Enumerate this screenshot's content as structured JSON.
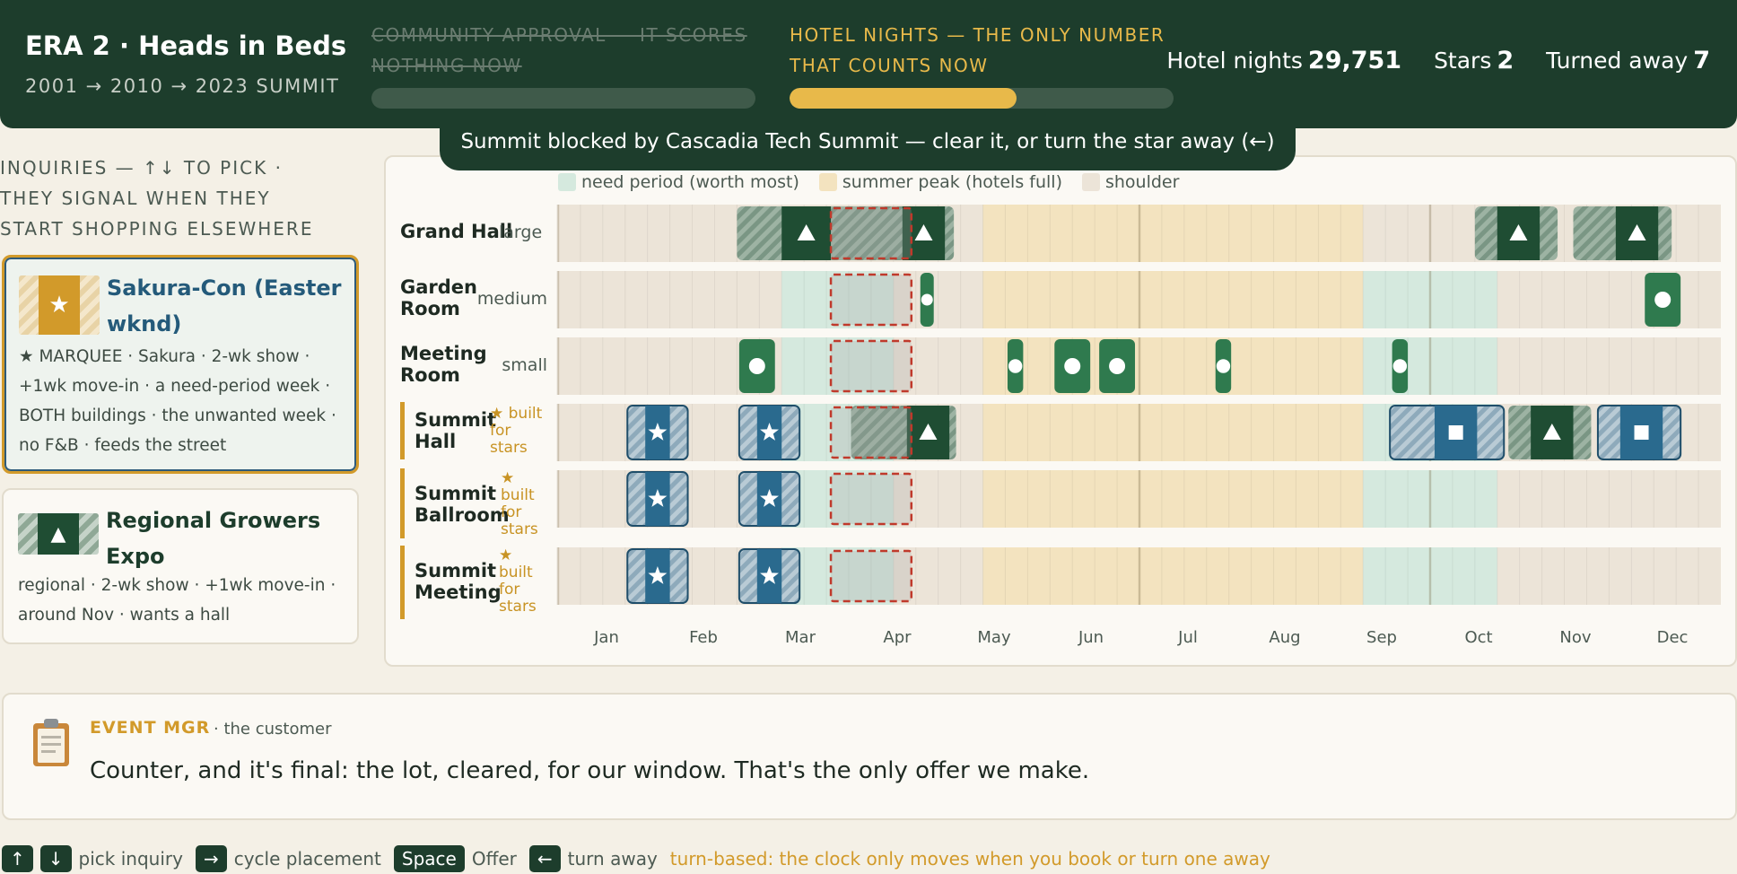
{
  "header": {
    "title": "ERA 2 · Heads in Beds",
    "subtitle": "2001 → 2010 → 2023 SUMMIT",
    "old_objective": "COMMUNITY APPROVAL — IT SCORES NOTHING NOW",
    "current_objective": "HOTEL NIGHTS — THE ONLY NUMBER THAT COUNTS NOW",
    "old_progress": 0,
    "current_progress": 0.59,
    "stats": {
      "hotel_nights_label": "Hotel nights",
      "hotel_nights": "29,751",
      "stars_label": "Stars",
      "stars": "2",
      "turned_away_label": "Turned away",
      "turned_away": "7"
    }
  },
  "toast": "Summit blocked by Cascadia Tech Summit — clear it, or turn the star away (←)",
  "inquiries": {
    "heading": "INQUIRIES — ↑↓ TO PICK · THEY SIGNAL WHEN THEY START SHOPPING ELSEWHERE",
    "items": [
      {
        "title": "Sakura-Con (Easter wknd)",
        "icon": "star-icon",
        "description": "★ MARQUEE · Sakura · 2-wk show · +1wk move-in · a need-period week · BOTH buildings · the unwanted week · no F&B · feeds the street",
        "selected": true
      },
      {
        "title": "Regional Growers Expo",
        "icon": "triangle-icon",
        "description": "regional · 2-wk show · +1wk move-in · around Nov · wants a hall",
        "selected": false
      }
    ]
  },
  "legend": [
    {
      "label": "need period (worth most)",
      "color": "#d5e9de"
    },
    {
      "label": "summer peak (hotels full)",
      "color": "#f3e3bf"
    },
    {
      "label": "shoulder",
      "color": "#ece4d8"
    }
  ],
  "rooms": [
    {
      "name": "Grand Hall",
      "size": "large",
      "summit": false
    },
    {
      "name": "Garden Room",
      "size": "medium",
      "summit": false
    },
    {
      "name": "Meeting Room",
      "size": "small",
      "summit": false
    },
    {
      "name": "Summit Hall",
      "size": "★ built for stars",
      "summit": true
    },
    {
      "name": "Summit Ballroom",
      "size": "★ built for stars",
      "summit": true
    },
    {
      "name": "Summit Meeting",
      "size": "★ built for stars",
      "summit": true
    }
  ],
  "months": [
    "Jan",
    "Feb",
    "Mar",
    "Apr",
    "May",
    "Jun",
    "Jul",
    "Aug",
    "Sep",
    "Oct",
    "Nov",
    "Dec"
  ],
  "colors": {
    "need": "#d5e9de",
    "peak": "#f3e3bf",
    "shoulder": "#ece4d8",
    "green": "#1f4d33",
    "blue": "#2a6a8e",
    "block_green": "#2f7a4e",
    "accent": "#d29a2a",
    "conflict": "#c0392b"
  },
  "dialog": {
    "speaker": "EVENT MGR",
    "role": "· the customer",
    "text": "Counter, and it's final: the lot, cleared, for our window. That's the only offer we make."
  },
  "footer": {
    "keys": [
      {
        "key": "↑",
        "label": ""
      },
      {
        "key": "↓",
        "label": "pick inquiry"
      },
      {
        "key": "→",
        "label": "cycle placement"
      },
      {
        "key": "Space",
        "label": "Offer"
      },
      {
        "key": "←",
        "label": "turn away"
      }
    ],
    "note": "turn-based: the clock only moves when you book or turn one away"
  }
}
